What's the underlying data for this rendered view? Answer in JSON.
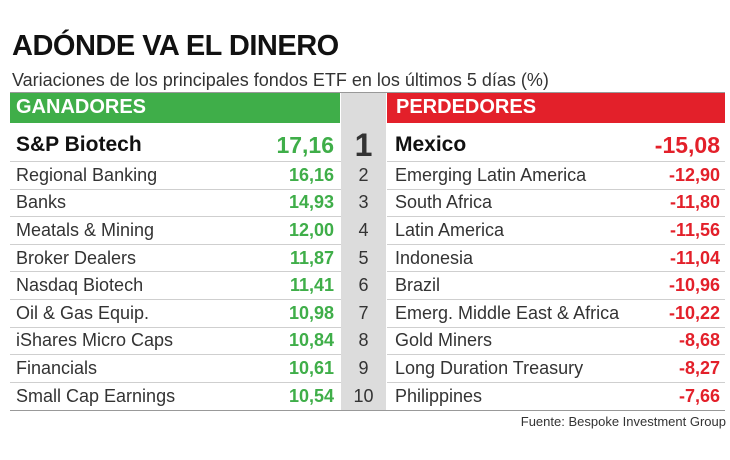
{
  "header": {
    "title": "ADÓNDE VA EL DINERO",
    "subtitle": "Variaciones de los principales fondos ETF en los últimos 5 días (%)"
  },
  "table": {
    "winners_heading": "GANADORES",
    "losers_heading": "PERDEDORES",
    "rows": [
      [
        "1",
        "S&P Biotech",
        "17,16",
        "Mexico",
        "-15,08"
      ],
      [
        "2",
        "Regional Banking",
        "16,16",
        "Emerging Latin America",
        "-12,90"
      ],
      [
        "3",
        "Banks",
        "14,93",
        "South Africa",
        "-11,80"
      ],
      [
        "4",
        "Meatals & Mining",
        "12,00",
        "Latin America",
        "-11,56"
      ],
      [
        "5",
        "Broker Dealers",
        "11,87",
        "Indonesia",
        "-11,04"
      ],
      [
        "6",
        "Nasdaq Biotech",
        "11,41",
        "Brazil",
        "-10,96"
      ],
      [
        "7",
        "Oil & Gas Equip.",
        "10,98",
        "Emerg. Middle East & Africa",
        "-10,22"
      ],
      [
        "8",
        "iShares Micro Caps",
        "10,84",
        "Gold Miners",
        "-8,68"
      ],
      [
        "9",
        "Financials",
        "10,61",
        "Long Duration Treasury",
        "-8,27"
      ],
      [
        "10",
        "Small Cap Earnings",
        "10,54",
        "Philippines",
        "-7,66"
      ]
    ]
  },
  "footer": {
    "source": "Fuente: Bespoke Investment Group"
  }
}
